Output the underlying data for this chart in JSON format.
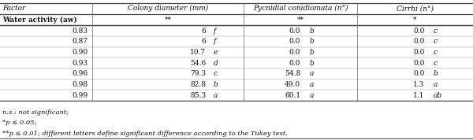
{
  "header": [
    "Factor",
    "Colony diameter (mm)",
    "",
    "Pycnidial conidiomata (n°)",
    "",
    "Cirrhi (n°)",
    ""
  ],
  "subheader": [
    "Water activity (aᴡ)",
    "**",
    "",
    "**",
    "",
    "*",
    ""
  ],
  "rows": [
    [
      "0.83",
      "6",
      "f",
      "0.0",
      "b",
      "0.0",
      "c"
    ],
    [
      "0.87",
      "6",
      "f",
      "0.0",
      "b",
      "0.0",
      "c"
    ],
    [
      "0.90",
      "10.7",
      "e",
      "0.0",
      "b",
      "0.0",
      "c"
    ],
    [
      "0.93",
      "54.6",
      "d",
      "0.0",
      "b",
      "0.0",
      "c"
    ],
    [
      "0.96",
      "79.3",
      "c",
      "54.8",
      "a",
      "0.0",
      "b"
    ],
    [
      "0.98",
      "82.8",
      "b",
      "49.0",
      "a",
      "1.3",
      "a"
    ],
    [
      "0.99",
      "85.3",
      "a",
      "60.1",
      "a",
      "1.1",
      "ab"
    ]
  ],
  "footnotes": [
    "n.s.: not significant;",
    "*p ≤ 0.05;",
    "**p ≤ 0.01; different letters define significant difference according to the Tukey test."
  ],
  "vcol_lines": [
    0.195,
    0.515,
    0.755
  ],
  "text_color": "#111111",
  "line_color": "#666666",
  "font_size": 6.5,
  "header_font_size": 6.5,
  "footnote_font_size": 6.0
}
